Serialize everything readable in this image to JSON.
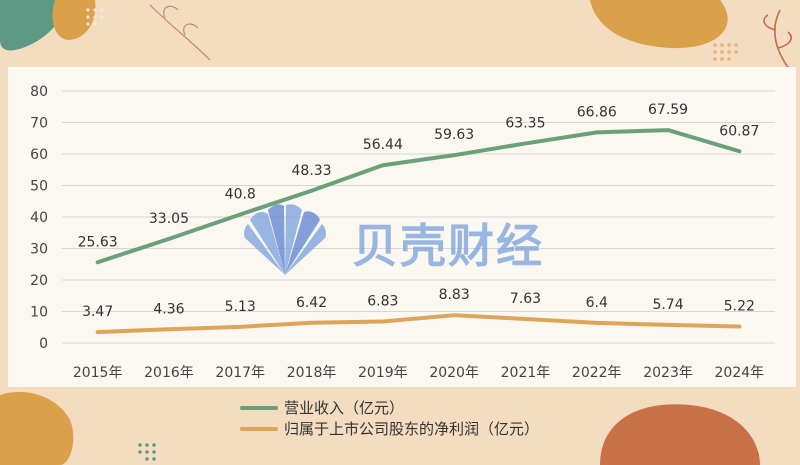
{
  "chart_data": {
    "type": "line",
    "categories": [
      "2015年",
      "2016年",
      "2017年",
      "2018年",
      "2019年",
      "2020年",
      "2021年",
      "2022年",
      "2023年",
      "2024年"
    ],
    "ylim": [
      0,
      80
    ],
    "yticks": [
      0,
      10,
      20,
      30,
      40,
      50,
      60,
      70,
      80
    ],
    "grid": true,
    "legend_position": "bottom",
    "series": [
      {
        "name": "营业收入（亿元）",
        "color": "#6aa17a",
        "values": [
          25.63,
          33.05,
          40.8,
          48.33,
          56.44,
          59.63,
          63.35,
          66.86,
          67.59,
          60.87
        ]
      },
      {
        "name": "归属于上市公司股东的净利润（亿元）",
        "color": "#dca55a",
        "values": [
          3.47,
          4.36,
          5.13,
          6.42,
          6.83,
          8.83,
          7.63,
          6.4,
          5.74,
          5.22
        ]
      }
    ]
  },
  "watermark": {
    "text": "贝壳财经",
    "icon": "shell-logo-icon",
    "color": "#7aa0dc"
  }
}
